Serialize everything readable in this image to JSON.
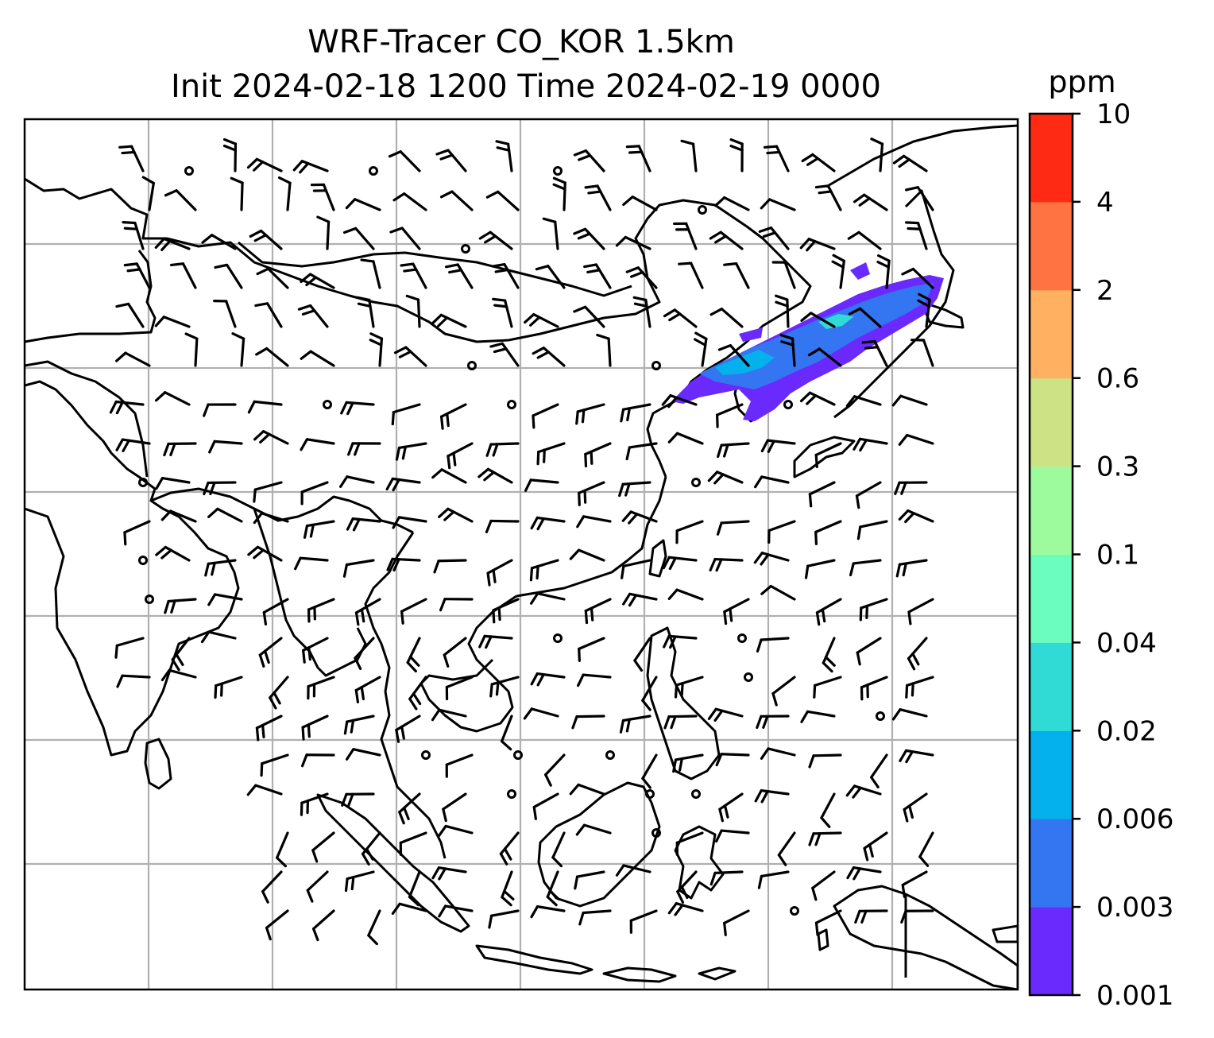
{
  "title": {
    "line1": "WRF-Tracer CO_KOR 1.5km",
    "line2": "Init 2024-02-18 1200 Time 2024-02-19 0000"
  },
  "colorbar": {
    "unit": "ppm",
    "levels": [
      "0.001",
      "0.003",
      "0.006",
      "0.02",
      "0.04",
      "0.1",
      "0.3",
      "0.6",
      "2",
      "4",
      "10"
    ],
    "colors": [
      "#6a2afe",
      "#3475f2",
      "#04b1ec",
      "#30dbd5",
      "#6bfcc0",
      "#9dfb9e",
      "#cde185",
      "#ffb060",
      "#ff7241",
      "#ff2a14"
    ]
  },
  "map": {
    "gridlines": true,
    "wind_barbs": true,
    "plume_color": "#3475f2"
  }
}
